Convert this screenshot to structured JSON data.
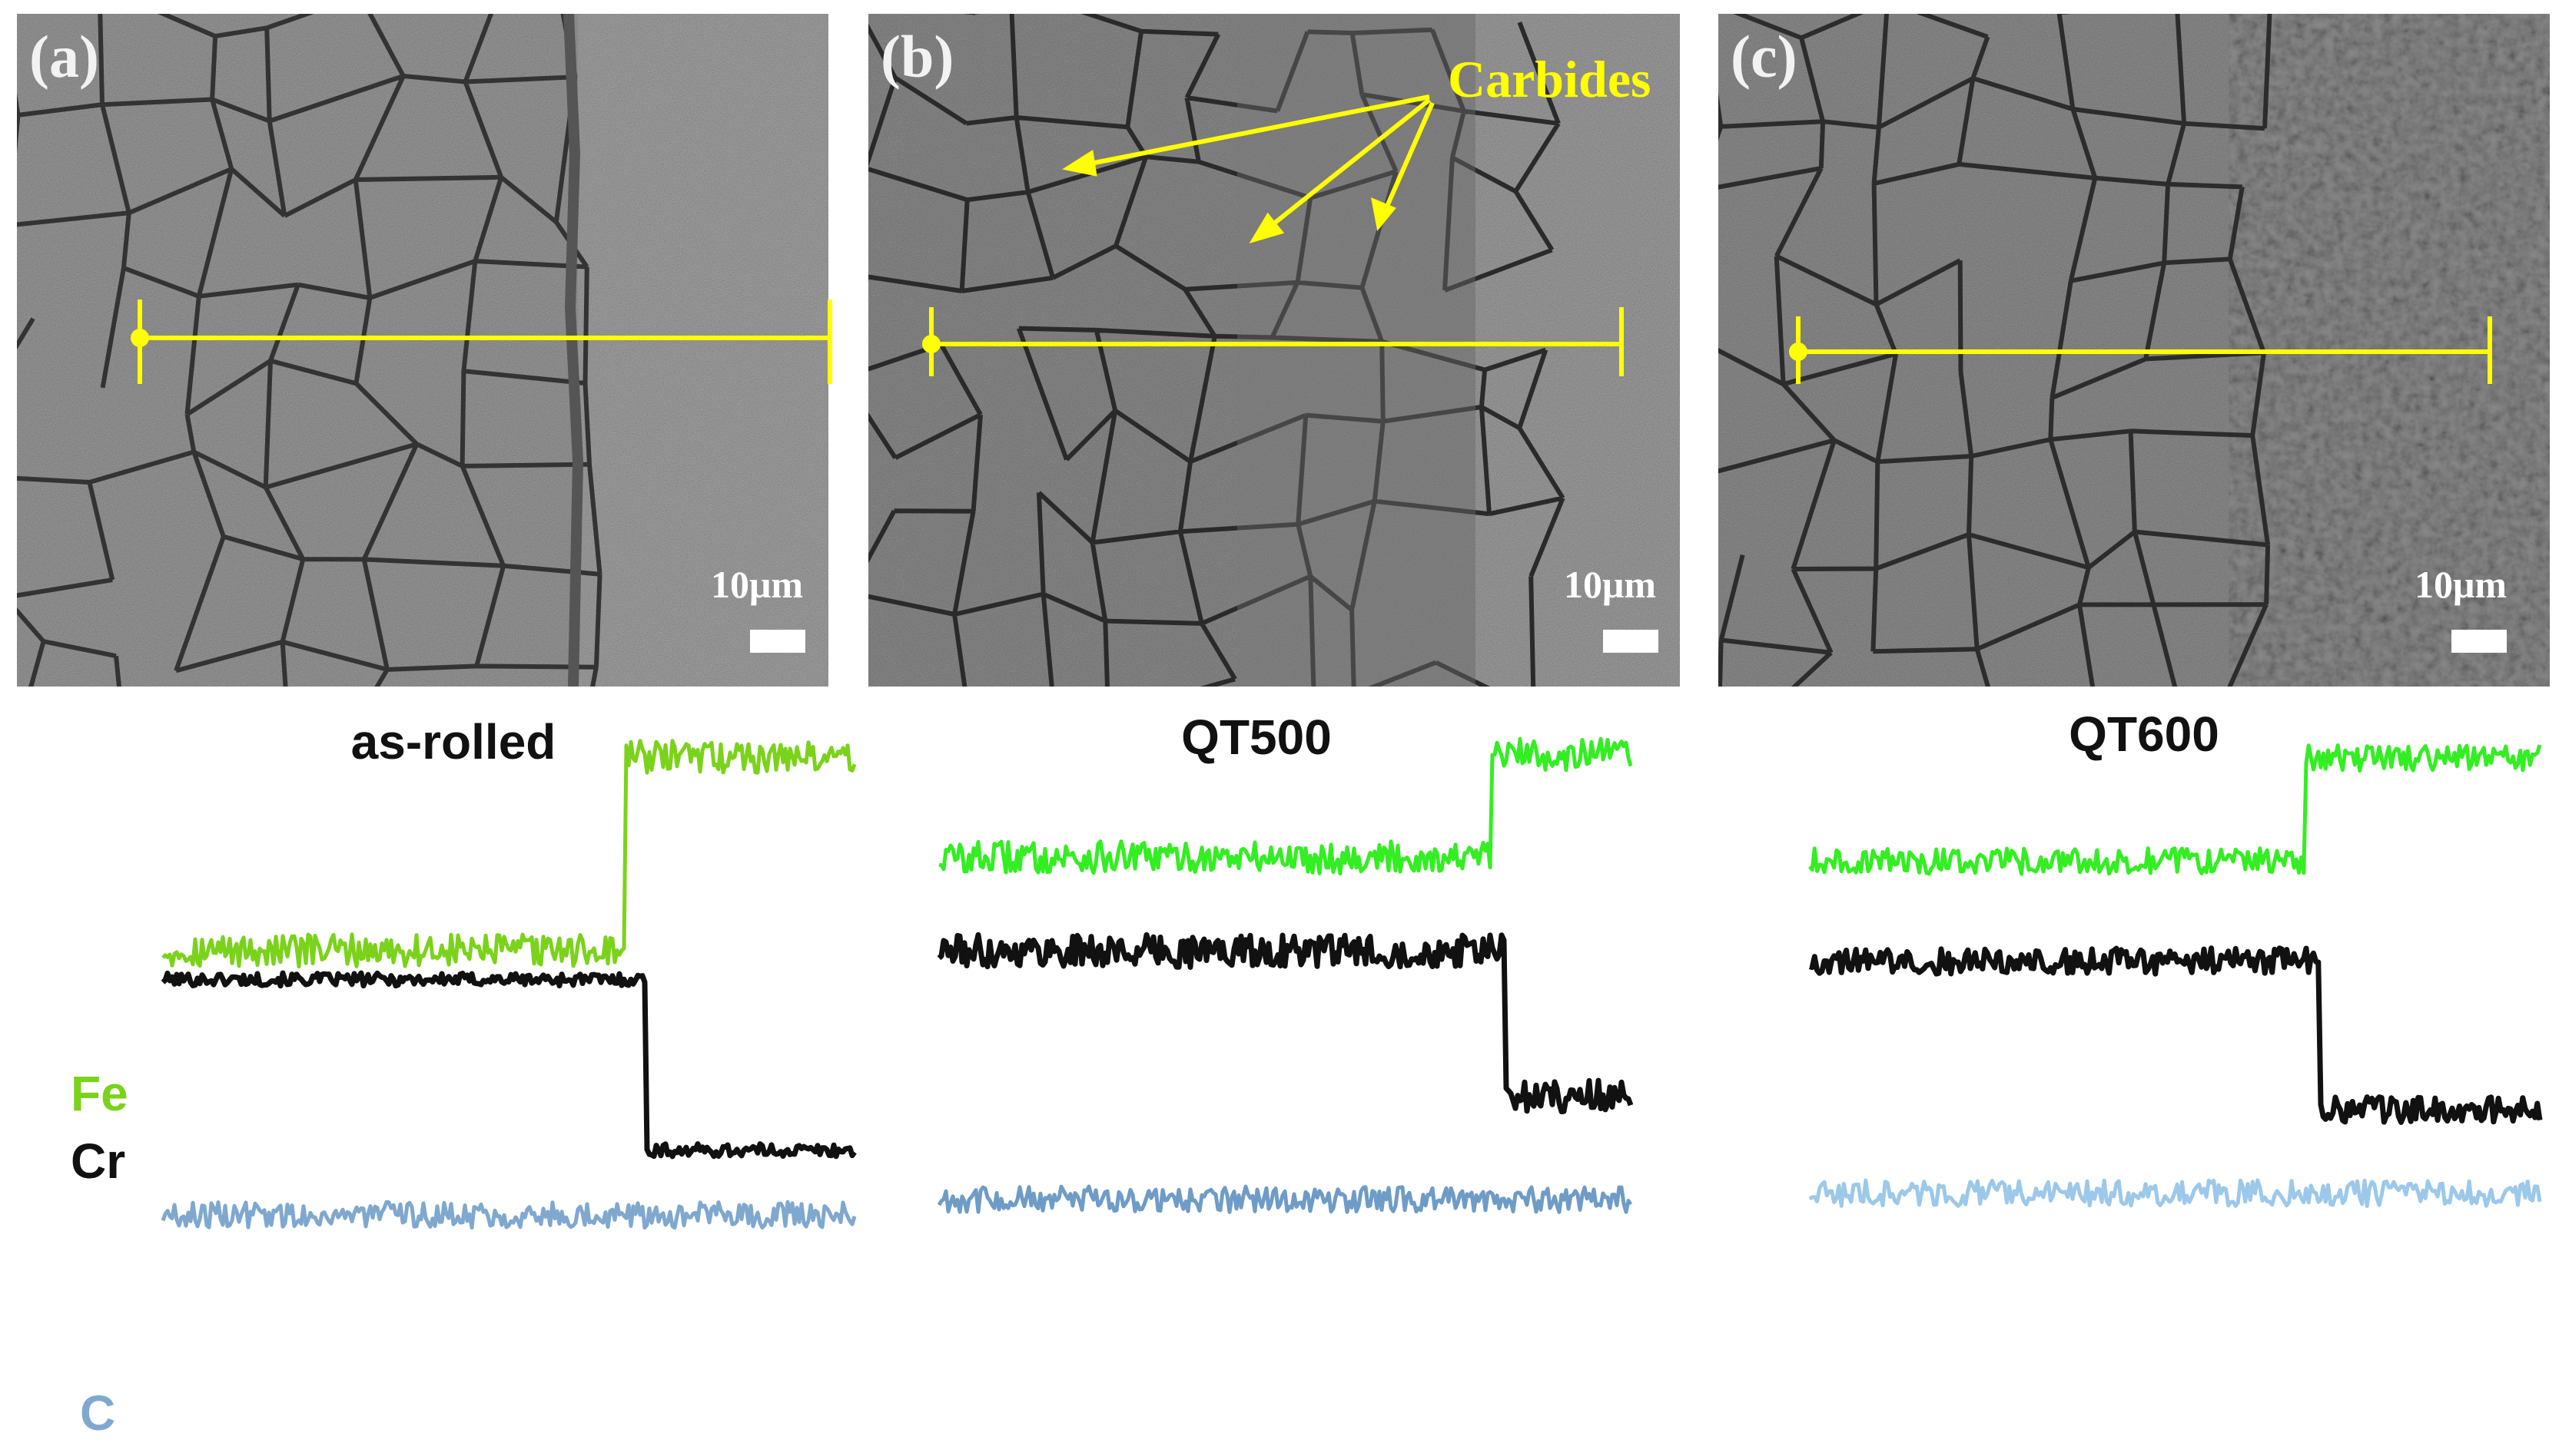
{
  "panels": [
    {
      "letter": "(a)",
      "condition": "as-rolled",
      "scale_bar": "10μm"
    },
    {
      "letter": "(b)",
      "condition": "QT500",
      "scale_bar": "10μm",
      "annotation": "Carbides"
    },
    {
      "letter": "(c)",
      "condition": "QT600",
      "scale_bar": "10μm"
    }
  ],
  "elements": [
    {
      "name": "Fe",
      "color": "#7ad31a"
    },
    {
      "name": "Cr",
      "color": "#111111"
    },
    {
      "name": "C",
      "color": "#7fa8cf"
    }
  ],
  "colors": {
    "line_scan": "#ffff00",
    "fe_qt": "#33ee22",
    "c_qt500": "#6f9cc7",
    "c_qt600": "#9cc8ea"
  },
  "chart_data": {
    "type": "line",
    "description_note": "",
    "profiles": [
      {
        "panel": "as-rolled",
        "series": [
          {
            "name": "Fe",
            "step_at": 0.67,
            "low": 0.22,
            "high": 0.82,
            "noise": 0.05
          },
          {
            "name": "Cr",
            "step_at": 0.7,
            "high": 0.13,
            "low": -0.4,
            "noise": 0.02
          },
          {
            "name": "C",
            "step_at": null,
            "level": -0.6,
            "noise": 0.04
          }
        ]
      },
      {
        "panel": "QT500",
        "series": [
          {
            "name": "Fe",
            "step_at": 0.8,
            "low": 0.52,
            "high": 0.84,
            "noise": 0.05
          },
          {
            "name": "Cr",
            "step_at": 0.82,
            "high": 0.23,
            "low": -0.22,
            "noise": 0.05
          },
          {
            "name": "C",
            "step_at": null,
            "level": -0.54,
            "noise": 0.04
          }
        ]
      },
      {
        "panel": "QT600",
        "series": [
          {
            "name": "Fe",
            "step_at": 0.68,
            "low": 0.54,
            "high": 0.86,
            "noise": 0.04
          },
          {
            "name": "Cr",
            "step_at": 0.7,
            "high": 0.23,
            "low": -0.23,
            "noise": 0.04
          },
          {
            "name": "C",
            "step_at": null,
            "level": -0.49,
            "noise": 0.04
          }
        ]
      }
    ]
  }
}
